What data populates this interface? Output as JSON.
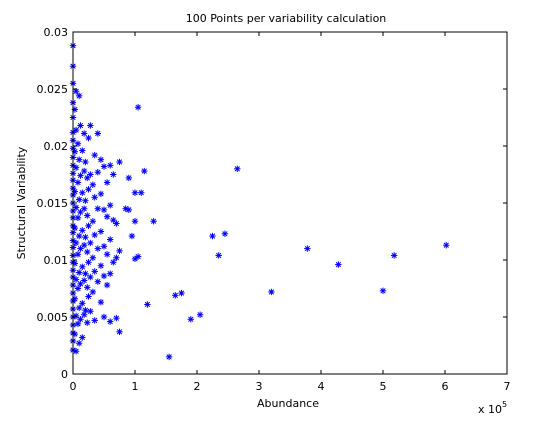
{
  "chart_data": {
    "type": "scatter",
    "title": "100 Points per variability calculation",
    "xlabel": "Abundance",
    "ylabel": "Structural Variability",
    "x_multiplier_label": "x 10",
    "x_multiplier_exponent": "5",
    "xlim": [
      0,
      700000
    ],
    "ylim": [
      0,
      0.03
    ],
    "xticks": [
      0,
      100000,
      200000,
      300000,
      400000,
      500000,
      600000,
      700000
    ],
    "xtick_labels": [
      "0",
      "1",
      "2",
      "3",
      "4",
      "5",
      "6",
      "7"
    ],
    "yticks": [
      0,
      0.005,
      0.01,
      0.015,
      0.02,
      0.025,
      0.03
    ],
    "ytick_labels": [
      "0",
      "0.005",
      "0.01",
      "0.015",
      "0.02",
      "0.025",
      "0.03"
    ],
    "grid": false,
    "marker": "*",
    "colors": {
      "marker": "#0000ff",
      "axes": "#000000",
      "background": "#ffffff"
    },
    "series": [
      {
        "points": [
          [
            0,
            0.0288
          ],
          [
            0,
            0.027
          ],
          [
            0,
            0.0255
          ],
          [
            0,
            0.0238
          ],
          [
            0,
            0.0225
          ],
          [
            0,
            0.0212
          ],
          [
            0,
            0.0205
          ],
          [
            0,
            0.0198
          ],
          [
            0,
            0.019
          ],
          [
            0,
            0.0183
          ],
          [
            0,
            0.0176
          ],
          [
            0,
            0.017
          ],
          [
            0,
            0.0163
          ],
          [
            0,
            0.0157
          ],
          [
            0,
            0.015
          ],
          [
            0,
            0.0143
          ],
          [
            0,
            0.0137
          ],
          [
            0,
            0.013
          ],
          [
            0,
            0.0124
          ],
          [
            0,
            0.0117
          ],
          [
            0,
            0.0111
          ],
          [
            0,
            0.0104
          ],
          [
            0,
            0.0098
          ],
          [
            0,
            0.0091
          ],
          [
            0,
            0.0085
          ],
          [
            0,
            0.0078
          ],
          [
            0,
            0.0071
          ],
          [
            0,
            0.0064
          ],
          [
            0,
            0.0057
          ],
          [
            0,
            0.005
          ],
          [
            0,
            0.0043
          ],
          [
            0,
            0.0036
          ],
          [
            0,
            0.0029
          ],
          [
            0,
            0.0021
          ],
          [
            3000,
            0.0232
          ],
          [
            3000,
            0.0195
          ],
          [
            3000,
            0.016
          ],
          [
            3000,
            0.0128
          ],
          [
            3000,
            0.0097
          ],
          [
            3000,
            0.0066
          ],
          [
            3000,
            0.0035
          ],
          [
            5000,
            0.0248
          ],
          [
            5000,
            0.0214
          ],
          [
            5000,
            0.0181
          ],
          [
            5000,
            0.0146
          ],
          [
            5000,
            0.0115
          ],
          [
            5000,
            0.0083
          ],
          [
            5000,
            0.0051
          ],
          [
            5000,
            0.002
          ],
          [
            8000,
            0.0202
          ],
          [
            8000,
            0.0168
          ],
          [
            8000,
            0.0137
          ],
          [
            8000,
            0.0105
          ],
          [
            8000,
            0.0075
          ],
          [
            8000,
            0.0044
          ],
          [
            10000,
            0.0244
          ],
          [
            10000,
            0.0188
          ],
          [
            10000,
            0.0153
          ],
          [
            10000,
            0.0121
          ],
          [
            10000,
            0.0089
          ],
          [
            10000,
            0.0058
          ],
          [
            10000,
            0.0027
          ],
          [
            12000,
            0.0218
          ],
          [
            12000,
            0.0174
          ],
          [
            12000,
            0.0142
          ],
          [
            12000,
            0.011
          ],
          [
            12000,
            0.0079
          ],
          [
            12000,
            0.0048
          ],
          [
            15000,
            0.0196
          ],
          [
            15000,
            0.0159
          ],
          [
            15000,
            0.0126
          ],
          [
            15000,
            0.0094
          ],
          [
            15000,
            0.0062
          ],
          [
            15000,
            0.0032
          ],
          [
            18000,
            0.0211
          ],
          [
            18000,
            0.0178
          ],
          [
            18000,
            0.0145
          ],
          [
            18000,
            0.0113
          ],
          [
            18000,
            0.0082
          ],
          [
            18000,
            0.0052
          ],
          [
            20000,
            0.0186
          ],
          [
            20000,
            0.0152
          ],
          [
            20000,
            0.012
          ],
          [
            20000,
            0.0088
          ],
          [
            20000,
            0.0056
          ],
          [
            23000,
            0.0172
          ],
          [
            23000,
            0.0139
          ],
          [
            23000,
            0.0107
          ],
          [
            23000,
            0.0076
          ],
          [
            23000,
            0.0045
          ],
          [
            25000,
            0.0207
          ],
          [
            25000,
            0.0162
          ],
          [
            25000,
            0.013
          ],
          [
            25000,
            0.0098
          ],
          [
            25000,
            0.0068
          ],
          [
            28000,
            0.0218
          ],
          [
            28000,
            0.0175
          ],
          [
            28000,
            0.0115
          ],
          [
            28000,
            0.0085
          ],
          [
            28000,
            0.0055
          ],
          [
            32000,
            0.0166
          ],
          [
            32000,
            0.0134
          ],
          [
            32000,
            0.0102
          ],
          [
            32000,
            0.0072
          ],
          [
            35000,
            0.0192
          ],
          [
            35000,
            0.0155
          ],
          [
            35000,
            0.0122
          ],
          [
            35000,
            0.009
          ],
          [
            35000,
            0.0047
          ],
          [
            40000,
            0.0211
          ],
          [
            40000,
            0.0177
          ],
          [
            40000,
            0.0145
          ],
          [
            40000,
            0.011
          ],
          [
            40000,
            0.0081
          ],
          [
            45000,
            0.0188
          ],
          [
            45000,
            0.0158
          ],
          [
            45000,
            0.0125
          ],
          [
            45000,
            0.0095
          ],
          [
            45000,
            0.0063
          ],
          [
            50000,
            0.0182
          ],
          [
            50000,
            0.0144
          ],
          [
            50000,
            0.0112
          ],
          [
            50000,
            0.0086
          ],
          [
            50000,
            0.005
          ],
          [
            55000,
            0.0168
          ],
          [
            55000,
            0.0138
          ],
          [
            55000,
            0.0105
          ],
          [
            55000,
            0.0078
          ],
          [
            60000,
            0.0183
          ],
          [
            60000,
            0.0148
          ],
          [
            60000,
            0.0118
          ],
          [
            60000,
            0.0088
          ],
          [
            60000,
            0.0046
          ],
          [
            65000,
            0.0175
          ],
          [
            65000,
            0.0135
          ],
          [
            65000,
            0.0098
          ],
          [
            70000,
            0.0132
          ],
          [
            70000,
            0.0102
          ],
          [
            70000,
            0.0049
          ],
          [
            75000,
            0.0186
          ],
          [
            75000,
            0.0108
          ],
          [
            75000,
            0.0037
          ],
          [
            85000,
            0.0145
          ],
          [
            90000,
            0.0172
          ],
          [
            90000,
            0.0144
          ],
          [
            95000,
            0.0121
          ],
          [
            100000,
            0.0159
          ],
          [
            100000,
            0.0134
          ],
          [
            100000,
            0.0101
          ],
          [
            105000,
            0.0234
          ],
          [
            105000,
            0.0103
          ],
          [
            110000,
            0.0159
          ],
          [
            115000,
            0.0178
          ],
          [
            120000,
            0.0061
          ],
          [
            130000,
            0.0134
          ],
          [
            155000,
            0.0015
          ],
          [
            165000,
            0.0069
          ],
          [
            175000,
            0.0071
          ],
          [
            190000,
            0.0048
          ],
          [
            205000,
            0.0052
          ],
          [
            225000,
            0.0121
          ],
          [
            235000,
            0.0104
          ],
          [
            245000,
            0.0123
          ],
          [
            265000,
            0.018
          ],
          [
            320000,
            0.0072
          ],
          [
            378000,
            0.011
          ],
          [
            428000,
            0.0096
          ],
          [
            500000,
            0.0073
          ],
          [
            518000,
            0.0104
          ],
          [
            602000,
            0.0113
          ]
        ]
      }
    ]
  }
}
